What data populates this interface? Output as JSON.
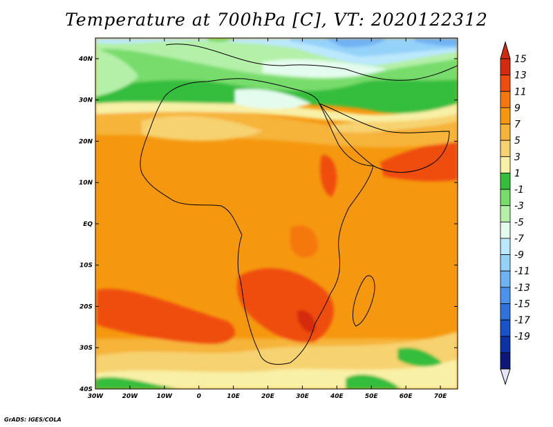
{
  "title": "Temperature at 700hPa [C], VT: 2020122312",
  "footer": "GrADS: IGES/COLA",
  "map": {
    "lon_range": [
      -30,
      75
    ],
    "lat_range": [
      -40,
      45
    ],
    "lon_ticks": [
      {
        "value": -30,
        "label": "30W"
      },
      {
        "value": -20,
        "label": "20W"
      },
      {
        "value": -10,
        "label": "10W"
      },
      {
        "value": 0,
        "label": "0"
      },
      {
        "value": 10,
        "label": "10E"
      },
      {
        "value": 20,
        "label": "20E"
      },
      {
        "value": 30,
        "label": "30E"
      },
      {
        "value": 40,
        "label": "40E"
      },
      {
        "value": 50,
        "label": "50E"
      },
      {
        "value": 60,
        "label": "60E"
      },
      {
        "value": 70,
        "label": "70E"
      }
    ],
    "lat_ticks": [
      {
        "value": 40,
        "label": "40N"
      },
      {
        "value": 30,
        "label": "30N"
      },
      {
        "value": 20,
        "label": "20N"
      },
      {
        "value": 10,
        "label": "10N"
      },
      {
        "value": 0,
        "label": "EQ"
      },
      {
        "value": -10,
        "label": "10S"
      },
      {
        "value": -20,
        "label": "20S"
      },
      {
        "value": -30,
        "label": "30S"
      },
      {
        "value": -40,
        "label": "40S"
      }
    ]
  },
  "colorbar": {
    "levels": [
      15,
      13,
      11,
      9,
      7,
      5,
      3,
      1,
      -1,
      -3,
      -5,
      -7,
      -9,
      -11,
      -13,
      -15,
      -17,
      -19
    ],
    "colors": [
      "#d42a0e",
      "#ef4d10",
      "#f5780f",
      "#f5980f",
      "#f6b43b",
      "#f7d270",
      "#f8f0a6",
      "#35be3c",
      "#78dc6c",
      "#b4f0a8",
      "#e4fcee",
      "#bce8fc",
      "#94d2fa",
      "#6fb2f4",
      "#4a92ec",
      "#2f72dc",
      "#1a52c8",
      "#0c32a8",
      "#0c1878"
    ],
    "top_arrow_color": "#d42a0e",
    "bottom_arrow_color": "#e6e6fa"
  }
}
